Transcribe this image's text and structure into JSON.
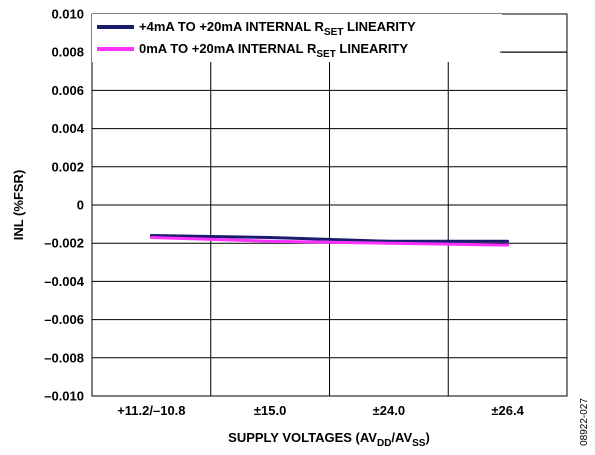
{
  "figure_id": "08922-027",
  "colors": {
    "series_1": "#1a1a6e",
    "series_2": "#ff33ff",
    "grid": "#000000"
  },
  "chart_data": {
    "type": "line",
    "categories": [
      "+11.2/–10.8",
      "±15.0",
      "±24.0",
      "±26.4"
    ],
    "xlabel": {
      "main": "SUPPLY VOLTAGES (AV",
      "sub1": "DD",
      "mid": "/AV",
      "sub2": "SS",
      "end": ")"
    },
    "ylabel": "INL (%FSR)",
    "ylim": [
      -0.01,
      0.01
    ],
    "yticks": [
      {
        "value": 0.01,
        "label": "0.010"
      },
      {
        "value": 0.008,
        "label": "0.008"
      },
      {
        "value": 0.006,
        "label": "0.006"
      },
      {
        "value": 0.004,
        "label": "0.004"
      },
      {
        "value": 0.002,
        "label": "0.002"
      },
      {
        "value": 0,
        "label": "0"
      },
      {
        "value": -0.002,
        "label": "–0.002"
      },
      {
        "value": -0.004,
        "label": "–0.004"
      },
      {
        "value": -0.006,
        "label": "–0.006"
      },
      {
        "value": -0.008,
        "label": "–0.008"
      },
      {
        "value": -0.01,
        "label": "–0.010"
      }
    ],
    "grid": true,
    "legend_position": "top-left",
    "series": [
      {
        "legend": {
          "pre": "+4mA TO +20mA INTERNAL R",
          "sub": "SET",
          "post": " LINEARITY"
        },
        "color": "#1a1a6e",
        "values": [
          -0.0016,
          -0.0017,
          -0.0019,
          -0.0019
        ]
      },
      {
        "legend": {
          "pre": "0mA TO +20mA INTERNAL R",
          "sub": "SET",
          "post": " LINEARITY"
        },
        "color": "#ff33ff",
        "values": [
          -0.0017,
          -0.0019,
          -0.002,
          -0.0021
        ]
      }
    ]
  }
}
